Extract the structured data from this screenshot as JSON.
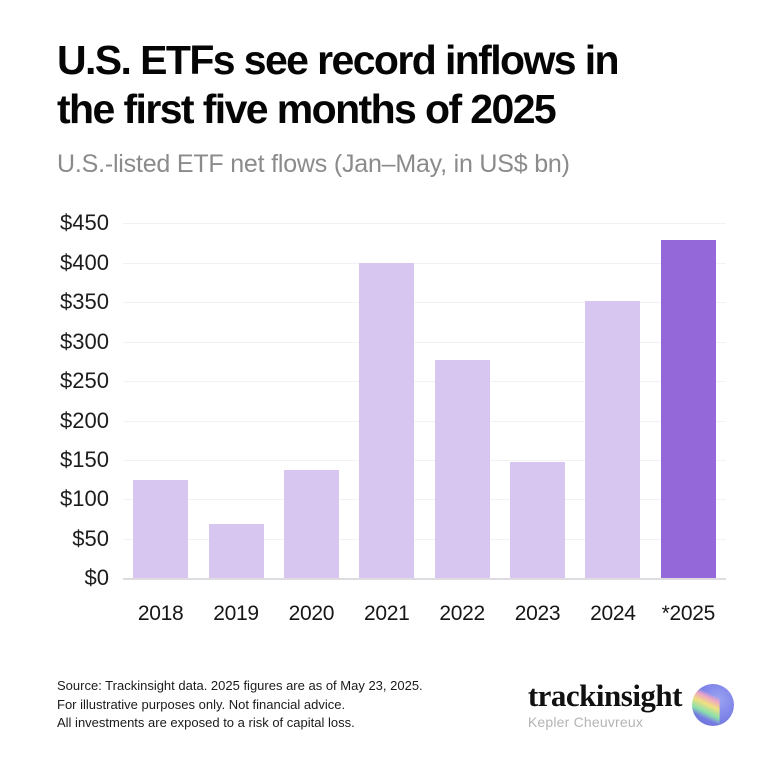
{
  "header": {
    "title": "U.S. ETFs see record inflows in\nthe first five months of 2025",
    "subtitle": "U.S.-listed ETF net flows (Jan–May, in US$ bn)"
  },
  "chart_data": {
    "type": "bar",
    "categories": [
      "2018",
      "2019",
      "2020",
      "2021",
      "2022",
      "2023",
      "2024",
      "*2025"
    ],
    "values": [
      125,
      69,
      137,
      400,
      277,
      148,
      352,
      429
    ],
    "title": "U.S. ETFs see record inflows in the first five months of 2025",
    "subtitle": "U.S.-listed ETF net flows (Jan–May, in US$ bn)",
    "xlabel": "",
    "ylabel": "",
    "ylim": [
      0,
      450
    ],
    "ytick_step": 50,
    "ytick_prefix": "$",
    "grid": true,
    "legend": false,
    "bar_color": "#d7c6f0",
    "highlight_color": "#9468d8",
    "highlight_index": 7
  },
  "footer": {
    "source_lines": [
      "Source: Trackinsight data. 2025 figures are as of May 23, 2025.",
      "For illustrative purposes only. Not financial advice.",
      "All investments are exposed to a risk of capital loss."
    ],
    "brand": {
      "name": "trackinsight",
      "subbrand": "Kepler Cheuvreux",
      "globe_icon_colors": [
        "#8287ea",
        "#f2a7c3",
        "#f5e47c",
        "#8ce6a8"
      ]
    }
  },
  "colors": {
    "background": "#ffffff",
    "title_text": "#050505",
    "subtitle_text": "#8b8b8b",
    "axis_text": "#1c1c1c",
    "gridline": "#f3f0f6",
    "axis_line": "#dedbe1"
  }
}
